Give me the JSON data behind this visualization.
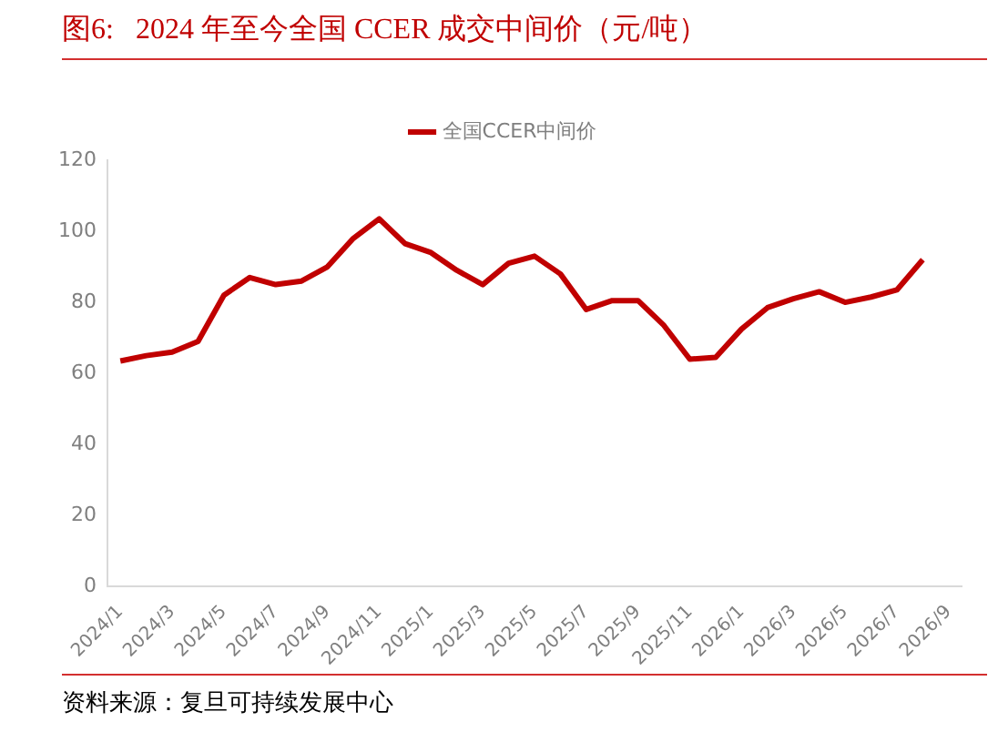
{
  "chart_data": {
    "type": "line",
    "title": "图6:   2024 年至今全国 CCER 成交中间价（元/吨）",
    "categories": [
      "2024/1",
      null,
      "2024/3",
      null,
      "2024/5",
      null,
      "2024/7",
      null,
      "2024/9",
      null,
      "2024/11",
      null,
      "2025/1",
      null,
      "2025/3",
      null,
      "2025/5",
      null,
      "2025/7",
      null,
      "2025/9",
      null,
      "2025/11",
      null,
      "2026/1",
      null,
      "2026/3",
      null,
      "2026/5",
      null,
      "2026/7",
      null,
      "2026/9"
    ],
    "series": [
      {
        "name": "全国CCER中间价",
        "color": "#c00000",
        "values": [
          63.5,
          65,
          66,
          69,
          82,
          87,
          85,
          86,
          90,
          98,
          103.5,
          96.5,
          94,
          89,
          85,
          91,
          93,
          88,
          78,
          80.5,
          80.5,
          73.5,
          64,
          64.5,
          72.5,
          78.5,
          81,
          83,
          80,
          81.5,
          83.5,
          92,
          null
        ]
      }
    ],
    "ylim": [
      0,
      120
    ],
    "yticks": [
      0,
      20,
      40,
      60,
      80,
      100,
      120
    ],
    "grid": false,
    "legend": "top",
    "marker": "none",
    "line_style": "solid",
    "annotations": [
      "资料来源：复旦可持续发展中心"
    ]
  }
}
